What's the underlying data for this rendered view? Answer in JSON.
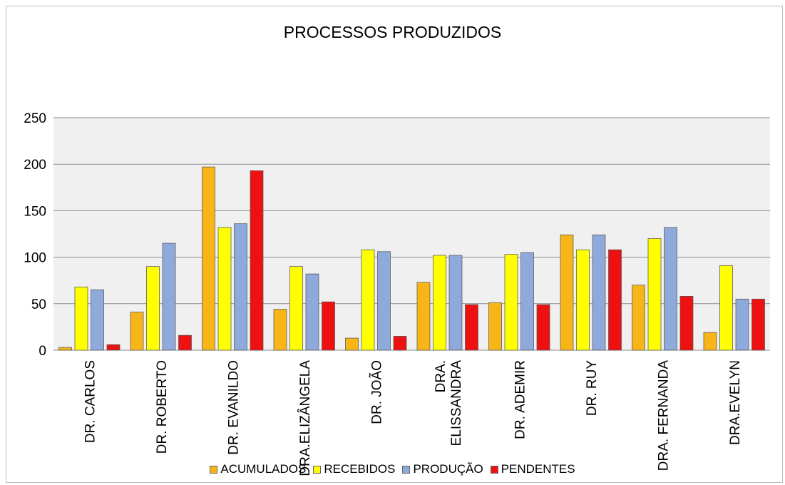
{
  "chart_data": {
    "type": "bar",
    "title": "PROCESSOS PRODUZIDOS",
    "categories": [
      "DR. CARLOS",
      "DR. ROBERTO",
      "DR. EVANILDO",
      "DRA.ELIZÂNGELA",
      "DR. JOÃO",
      "DRA. ELISSANDRA",
      "DR. ADEMIR",
      "DR. RUY",
      "DRA. FERNANDA",
      "DRA.EVELYN"
    ],
    "category_lines": [
      [
        "DR. CARLOS"
      ],
      [
        "DR. ROBERTO"
      ],
      [
        "DR. EVANILDO"
      ],
      [
        "DRA.ELIZÂNGELA"
      ],
      [
        "DR. JOÃO"
      ],
      [
        "DRA.",
        "ELISSANDRA"
      ],
      [
        "DR. ADEMIR"
      ],
      [
        "DR. RUY"
      ],
      [
        "DRA. FERNANDA"
      ],
      [
        "DRA.EVELYN"
      ]
    ],
    "series": [
      {
        "name": "ACUMULADOS",
        "color": "#f8b518",
        "values": [
          3,
          41,
          197,
          44,
          13,
          73,
          51,
          124,
          70,
          19
        ]
      },
      {
        "name": "RECEBIDOS",
        "color": "#ffff00",
        "values": [
          68,
          90,
          132,
          90,
          108,
          102,
          103,
          108,
          120,
          91
        ]
      },
      {
        "name": "PRODUÇÃO",
        "color": "#8eaadb",
        "values": [
          65,
          115,
          136,
          82,
          106,
          102,
          105,
          124,
          132,
          55
        ]
      },
      {
        "name": "PENDENTES",
        "color": "#ee1111",
        "values": [
          6,
          16,
          193,
          52,
          15,
          49,
          49,
          108,
          58,
          55
        ]
      }
    ],
    "ylim": [
      0,
      250
    ],
    "yticks": [
      0,
      50,
      100,
      150,
      200,
      250
    ],
    "grid": true,
    "plot_background": "#f0f0f0",
    "legend_position": "bottom"
  }
}
